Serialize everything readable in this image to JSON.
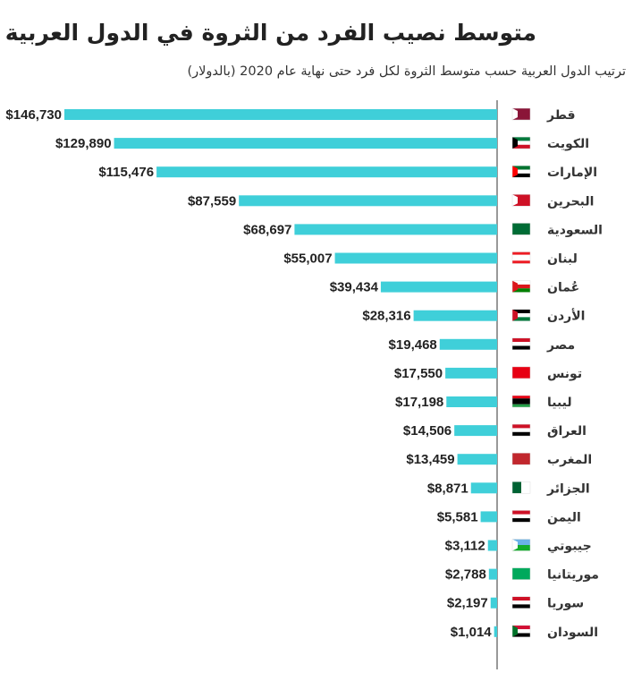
{
  "chart_data": {
    "type": "bar",
    "orientation": "horizontal",
    "title": "متوسط نصيب الفرد من الثروة في الدول العربية",
    "subtitle": "ترتيب الدول العربية حسب متوسط الثروة لكل فرد حتى نهاية عام 2020 (بالدولار)",
    "bar_color": "#3fcfd9",
    "categories": [
      "قطر",
      "الكويت",
      "الإمارات",
      "البحرين",
      "السعودية",
      "لبنان",
      "عُمان",
      "الأردن",
      "مصر",
      "تونس",
      "ليبيا",
      "العراق",
      "المغرب",
      "الجزائر",
      "اليمن",
      "جيبوتي",
      "موريتانيا",
      "سوريا",
      "السودان"
    ],
    "values": [
      146730,
      129890,
      115476,
      87559,
      68697,
      55007,
      39434,
      28316,
      19468,
      17550,
      17198,
      14506,
      13459,
      8871,
      5581,
      3112,
      2788,
      2197,
      1014
    ],
    "value_labels": [
      "$146,730",
      "$129,890",
      "$115,476",
      "$87,559",
      "$68,697",
      "$55,007",
      "$39,434",
      "$28,316",
      "$19,468",
      "$17,550",
      "$17,198",
      "$14,506",
      "$13,459",
      "$8,871",
      "$5,581",
      "$3,112",
      "$2,788",
      "$2,197",
      "$1,014"
    ],
    "flags": [
      {
        "stripes": [
          "#8a1538"
        ],
        "hoist": "#ffffff"
      },
      {
        "stripes": [
          "#007a3d",
          "#ffffff",
          "#ce1126"
        ],
        "hoist": "#000000"
      },
      {
        "stripes": [
          "#00732f",
          "#ffffff",
          "#000000"
        ],
        "hoist": "#ff0000"
      },
      {
        "stripes": [
          "#ce1126"
        ],
        "hoist": "#ffffff"
      },
      {
        "stripes": [
          "#006c35"
        ],
        "hoist": null
      },
      {
        "stripes": [
          "#ed1c24",
          "#ffffff",
          "#ffffff",
          "#ed1c24"
        ],
        "hoist": null
      },
      {
        "stripes": [
          "#ffffff",
          "#db161b",
          "#008000"
        ],
        "hoist": "#db161b"
      },
      {
        "stripes": [
          "#000000",
          "#ffffff",
          "#007a3d"
        ],
        "hoist": "#ce1126"
      },
      {
        "stripes": [
          "#ce1126",
          "#ffffff",
          "#000000"
        ],
        "hoist": null
      },
      {
        "stripes": [
          "#e70013"
        ],
        "hoist": null
      },
      {
        "stripes": [
          "#e70013",
          "#000000",
          "#000000",
          "#239e46"
        ],
        "hoist": null
      },
      {
        "stripes": [
          "#ce1126",
          "#ffffff",
          "#000000"
        ],
        "hoist": null
      },
      {
        "stripes": [
          "#c1272d"
        ],
        "hoist": null
      },
      {
        "stripes": [
          "#006233",
          "#ffffff"
        ],
        "vertical": true,
        "hoist": null
      },
      {
        "stripes": [
          "#ce1126",
          "#ffffff",
          "#000000"
        ],
        "hoist": null
      },
      {
        "stripes": [
          "#6ab2e7",
          "#12ad2b"
        ],
        "hoist": "#ffffff"
      },
      {
        "stripes": [
          "#00a95c"
        ],
        "hoist": null
      },
      {
        "stripes": [
          "#ce1126",
          "#ffffff",
          "#000000"
        ],
        "hoist": null
      },
      {
        "stripes": [
          "#d21034",
          "#ffffff",
          "#000000"
        ],
        "hoist": "#007229"
      }
    ],
    "xlim": [
      0,
      146730
    ]
  }
}
